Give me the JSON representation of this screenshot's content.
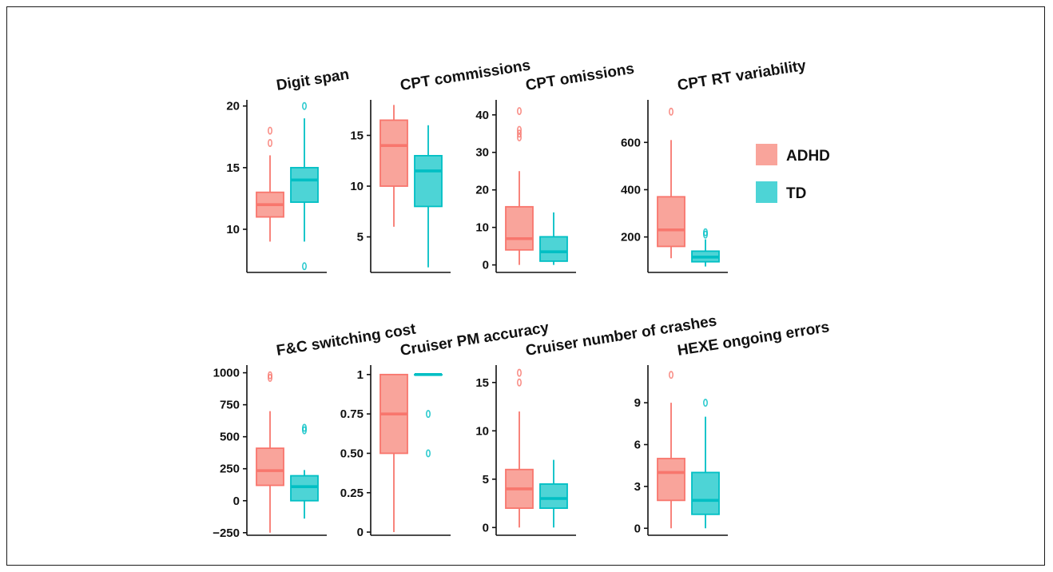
{
  "chart_data": {
    "type": "boxplot",
    "groups": [
      {
        "name": "ADHD",
        "color": "#F8766D",
        "fill": "#F9A49B"
      },
      {
        "name": "TD",
        "color": "#00BFC4",
        "fill": "#4DD4D6"
      }
    ],
    "panels": [
      {
        "title": "Digit span",
        "ylim": [
          6.5,
          20.5
        ],
        "yticks": [
          10,
          15,
          20
        ],
        "tick_labels": [
          "10",
          "15",
          "20"
        ],
        "boxes": [
          {
            "q1": 11,
            "median": 12,
            "q3": 13,
            "whisker_low": 9,
            "whisker_high": 16,
            "outliers": [
              17,
              18
            ]
          },
          {
            "q1": 12.2,
            "median": 14,
            "q3": 15,
            "whisker_low": 9,
            "whisker_high": 19,
            "outliers": [
              7,
              20
            ]
          }
        ]
      },
      {
        "title": "CPT commissions",
        "ylim": [
          1.5,
          18.5
        ],
        "yticks": [
          5,
          10,
          15
        ],
        "tick_labels": [
          "5",
          "10",
          "15"
        ],
        "boxes": [
          {
            "q1": 10,
            "median": 14,
            "q3": 16.5,
            "whisker_low": 6,
            "whisker_high": 18,
            "outliers": []
          },
          {
            "q1": 8,
            "median": 11.5,
            "q3": 13,
            "whisker_low": 2,
            "whisker_high": 16,
            "outliers": []
          }
        ]
      },
      {
        "title": "CPT omissions",
        "ylim": [
          -2,
          44
        ],
        "yticks": [
          0,
          10,
          20,
          30,
          40
        ],
        "tick_labels": [
          "0",
          "10",
          "20",
          "30",
          "40"
        ],
        "boxes": [
          {
            "q1": 4,
            "median": 7,
            "q3": 15.5,
            "whisker_low": 0,
            "whisker_high": 25,
            "outliers": [
              34,
              35,
              36,
              41
            ]
          },
          {
            "q1": 1,
            "median": 3.5,
            "q3": 7.5,
            "whisker_low": 0,
            "whisker_high": 14,
            "outliers": []
          }
        ]
      },
      {
        "title": "CPT RT variability",
        "ylim": [
          50,
          780
        ],
        "yticks": [
          200,
          400,
          600
        ],
        "tick_labels": [
          "200",
          "400",
          "600"
        ],
        "boxes": [
          {
            "q1": 160,
            "median": 230,
            "q3": 370,
            "whisker_low": 110,
            "whisker_high": 610,
            "outliers": [
              730
            ]
          },
          {
            "q1": 95,
            "median": 115,
            "q3": 140,
            "whisker_low": 75,
            "whisker_high": 190,
            "outliers": [
              210,
              220
            ]
          }
        ]
      },
      {
        "title": "F&C switching cost",
        "ylim": [
          -270,
          1060
        ],
        "yticks": [
          -250,
          0,
          250,
          500,
          750,
          1000
        ],
        "tick_labels": [
          "−250",
          "0",
          "250",
          "500",
          "750",
          "1000"
        ],
        "boxes": [
          {
            "q1": 120,
            "median": 235,
            "q3": 410,
            "whisker_low": -250,
            "whisker_high": 700,
            "outliers": [
              960,
              980
            ]
          },
          {
            "q1": 0,
            "median": 110,
            "q3": 195,
            "whisker_low": -140,
            "whisker_high": 240,
            "outliers": [
              550,
              570
            ]
          }
        ]
      },
      {
        "title": "Cruiser PM accuracy",
        "ylim": [
          -0.02,
          1.06
        ],
        "yticks": [
          0,
          0.25,
          0.5,
          0.75,
          1
        ],
        "tick_labels": [
          "0",
          "0.25",
          "0.50",
          "0.75",
          "1"
        ],
        "boxes": [
          {
            "q1": 0.5,
            "median": 0.75,
            "q3": 1,
            "whisker_low": 0,
            "whisker_high": 1,
            "outliers": []
          },
          {
            "q1": 1,
            "median": 1,
            "q3": 1,
            "whisker_low": 1,
            "whisker_high": 1,
            "outliers": [
              0.5,
              0.75
            ]
          }
        ]
      },
      {
        "title": "Cruiser number of crashes",
        "ylim": [
          -0.8,
          16.8
        ],
        "yticks": [
          0,
          5,
          10,
          15
        ],
        "tick_labels": [
          "0",
          "5",
          "10",
          "15"
        ],
        "boxes": [
          {
            "q1": 2,
            "median": 4,
            "q3": 6,
            "whisker_low": 0,
            "whisker_high": 12,
            "outliers": [
              15,
              16
            ]
          },
          {
            "q1": 2,
            "median": 3,
            "q3": 4.5,
            "whisker_low": 0,
            "whisker_high": 7,
            "outliers": []
          }
        ]
      },
      {
        "title": "HEXE ongoing errors",
        "ylim": [
          -0.5,
          11.7
        ],
        "yticks": [
          0,
          3,
          6,
          9
        ],
        "tick_labels": [
          "0",
          "3",
          "6",
          "9"
        ],
        "boxes": [
          {
            "q1": 2,
            "median": 4,
            "q3": 5,
            "whisker_low": 0,
            "whisker_high": 9,
            "outliers": [
              11
            ]
          },
          {
            "q1": 1,
            "median": 2,
            "q3": 4,
            "whisker_low": 0,
            "whisker_high": 8,
            "outliers": [
              9
            ]
          }
        ]
      }
    ],
    "legend": {
      "placement": "right",
      "entries": [
        "ADHD",
        "TD"
      ]
    }
  }
}
